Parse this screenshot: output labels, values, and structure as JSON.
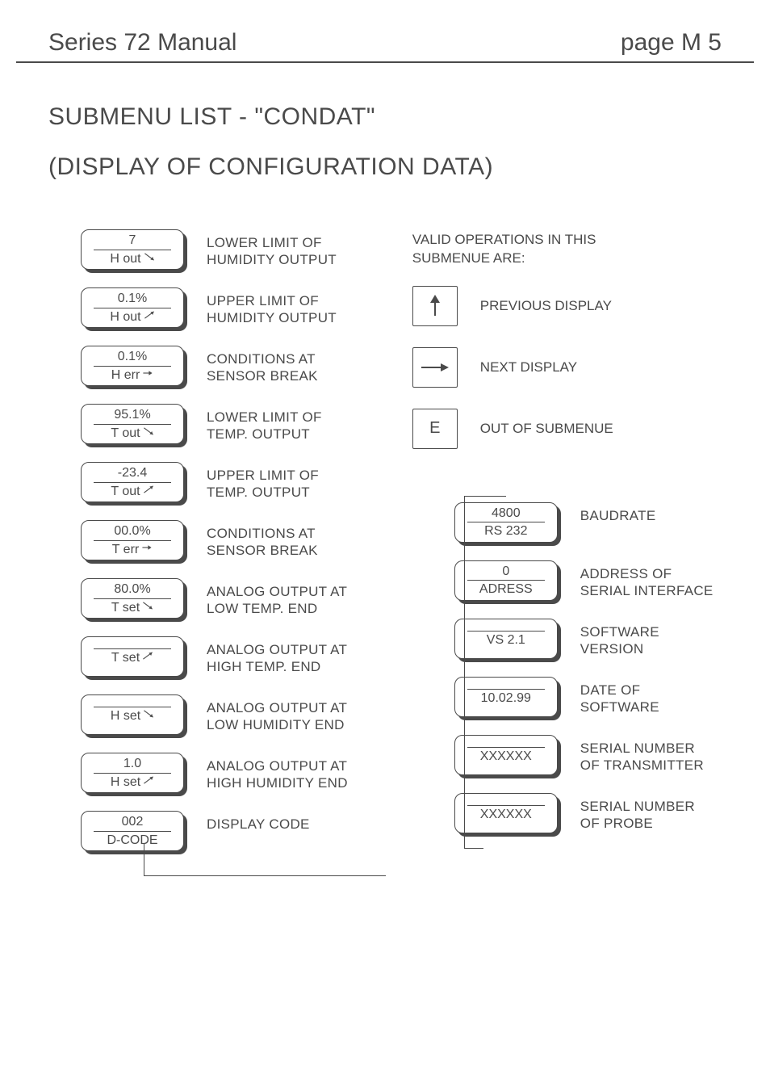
{
  "header": {
    "left": "Series 72 Manual",
    "right": "page  M 5"
  },
  "titles": {
    "t1": "SUBMENU LIST - \"CONDAT\"",
    "t2": "(DISPLAY OF CONFIGURATION DATA)"
  },
  "left_items": [
    {
      "value": "7",
      "label": "H out",
      "arrow": "down",
      "desc1": "LOWER LIMIT OF",
      "desc2": "HUMIDITY OUTPUT"
    },
    {
      "value": "0.1%",
      "label": "H out",
      "arrow": "up",
      "desc1": "UPPER LIMIT OF",
      "desc2": "HUMIDITY OUTPUT"
    },
    {
      "value": "0.1%",
      "label": "H err",
      "arrow": "right",
      "desc1": "CONDITIONS AT",
      "desc2": "SENSOR BREAK"
    },
    {
      "value": "95.1%",
      "label": "T out",
      "arrow": "down",
      "desc1": "LOWER LIMIT OF",
      "desc2": "TEMP. OUTPUT"
    },
    {
      "value": "-23.4",
      "label": "T out",
      "arrow": "up",
      "desc1": "UPPER LIMIT OF",
      "desc2": "TEMP. OUTPUT"
    },
    {
      "value": "00.0%",
      "label": "T err",
      "arrow": "right",
      "desc1": "CONDITIONS AT",
      "desc2": "SENSOR BREAK"
    },
    {
      "value": "80.0%",
      "label": "T set",
      "arrow": "down",
      "desc1": "ANALOG OUTPUT AT",
      "desc2": "LOW TEMP. END"
    },
    {
      "value": "",
      "label": "T set",
      "arrow": "up",
      "desc1": "ANALOG OUTPUT AT",
      "desc2": "HIGH TEMP. END"
    },
    {
      "value": "",
      "label": "H set",
      "arrow": "down",
      "desc1": "ANALOG OUTPUT AT",
      "desc2": "LOW HUMIDITY END"
    },
    {
      "value": "1.0",
      "label": "H set",
      "arrow": "up",
      "desc1": "ANALOG OUTPUT AT",
      "desc2": "HIGH HUMIDITY END"
    },
    {
      "value": "002",
      "label": "D-CODE",
      "arrow": "",
      "desc1": "DISPLAY CODE",
      "desc2": ""
    }
  ],
  "ops": {
    "title1": "VALID OPERATIONS IN THIS",
    "title2": "SUBMENUE ARE:",
    "keys": [
      {
        "glyph": "up",
        "label": "PREVIOUS DISPLAY"
      },
      {
        "glyph": "right",
        "label": "NEXT DISPLAY"
      },
      {
        "glyph": "E",
        "label": "OUT OF SUBMENUE"
      }
    ]
  },
  "right_items": [
    {
      "value": "4800",
      "label": "RS 232",
      "desc1": "BAUDRATE",
      "desc2": ""
    },
    {
      "value": "0",
      "label": "ADRESS",
      "desc1": "ADDRESS OF",
      "desc2": "SERIAL INTERFACE"
    },
    {
      "value": "",
      "label": "VS 2.1",
      "desc1": "SOFTWARE",
      "desc2": "VERSION"
    },
    {
      "value": "",
      "label": "10.02.99",
      "desc1": "DATE OF",
      "desc2": "SOFTWARE"
    },
    {
      "value": "",
      "label": "XXXXXX",
      "desc1": "SERIAL NUMBER",
      "desc2": "OF TRANSMITTER"
    },
    {
      "value": "",
      "label": "XXXXXX",
      "desc1": "SERIAL NUMBER",
      "desc2": "OF PROBE"
    }
  ],
  "colors": {
    "text": "#4a4a4a",
    "bg": "#ffffff"
  }
}
